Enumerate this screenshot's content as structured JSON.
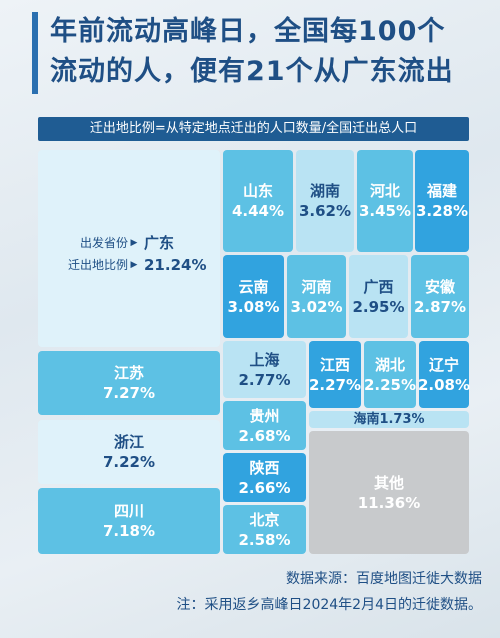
{
  "header": {
    "title_line1": "年前流动高峰日，全国每100个",
    "title_line2": "流动的人，便有21个从广东流出"
  },
  "formula": "迁出地比例=从特定地点迁出的人口数量/全国迁出总人口",
  "guangdong_labels": {
    "origin_key": "出发省份",
    "ratio_key": "迁出地比例"
  },
  "chart_data": {
    "type": "treemap",
    "title": "年前流动高峰日，全国每100个流动的人，便有21个从广东流出",
    "subtitle": "迁出地比例=从特定地点迁出的人口数量/全国迁出总人口",
    "unit": "%",
    "items": [
      {
        "name": "广东",
        "value": 21.24,
        "label": "21.24%"
      },
      {
        "name": "江苏",
        "value": 7.27,
        "label": "7.27%"
      },
      {
        "name": "浙江",
        "value": 7.22,
        "label": "7.22%"
      },
      {
        "name": "四川",
        "value": 7.18,
        "label": "7.18%"
      },
      {
        "name": "山东",
        "value": 4.44,
        "label": "4.44%"
      },
      {
        "name": "湖南",
        "value": 3.62,
        "label": "3.62%"
      },
      {
        "name": "河北",
        "value": 3.45,
        "label": "3.45%"
      },
      {
        "name": "福建",
        "value": 3.28,
        "label": "3.28%"
      },
      {
        "name": "云南",
        "value": 3.08,
        "label": "3.08%"
      },
      {
        "name": "河南",
        "value": 3.02,
        "label": "3.02%"
      },
      {
        "name": "广西",
        "value": 2.95,
        "label": "2.95%"
      },
      {
        "name": "安徽",
        "value": 2.87,
        "label": "2.87%"
      },
      {
        "name": "上海",
        "value": 2.77,
        "label": "2.77%"
      },
      {
        "name": "江西",
        "value": 2.27,
        "label": "2.27%"
      },
      {
        "name": "湖北",
        "value": 2.25,
        "label": "2.25%"
      },
      {
        "name": "辽宁",
        "value": 2.08,
        "label": "2.08%"
      },
      {
        "name": "海南",
        "value": 1.73,
        "label": "1.73%"
      },
      {
        "name": "贵州",
        "value": 2.68,
        "label": "2.68%"
      },
      {
        "name": "陕西",
        "value": 2.66,
        "label": "2.66%"
      },
      {
        "name": "北京",
        "value": 2.58,
        "label": "2.58%"
      },
      {
        "name": "其他",
        "value": 11.36,
        "label": "11.36%"
      }
    ]
  },
  "footer": {
    "source": "数据来源：百度地图迁徙大数据",
    "note": "注：采用返乡高峰日2024年2月4日的迁徙数据。"
  }
}
